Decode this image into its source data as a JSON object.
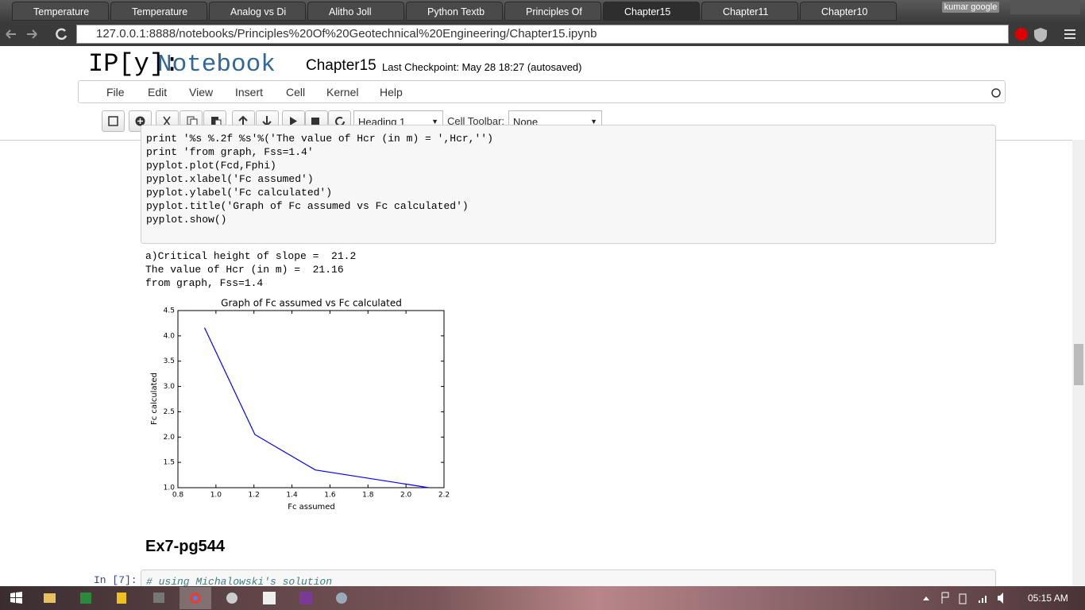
{
  "browser": {
    "tabs": [
      "Temperature",
      "Temperature",
      "Analog vs Di",
      "Alitho Joll",
      "Python Textb",
      "Principles Of",
      "Chapter15",
      "Chapter11",
      "Chapter10"
    ],
    "active_tab": 6,
    "user": "kumar google",
    "url": "127.0.0.1:8888/notebooks/Principles%20Of%20Geotechnical%20Engineering/Chapter15.ipynb"
  },
  "notebook": {
    "logo": "IP[y]:",
    "logo_word": "Notebook",
    "name": "Chapter15",
    "checkpoint": "Last Checkpoint: May 28 18:27 (autosaved)",
    "menu": [
      "File",
      "Edit",
      "View",
      "Insert",
      "Cell",
      "Kernel",
      "Help"
    ],
    "cell_type": "Heading 1",
    "cell_toolbar_label": "Cell Toolbar:",
    "cell_toolbar": "None"
  },
  "code_cell": {
    "lines": [
      "print '%s %.2f %s'%('The value of Hcr (in m) = ',Hcr,'')",
      "print 'from graph, Fss=1.4'",
      "pyplot.plot(Fcd,Fphi)",
      "pyplot.xlabel('Fc assumed')",
      "pyplot.ylabel('Fc calculated')",
      "pyplot.title('Graph of Fc assumed vs Fc calculated')",
      "pyplot.show()"
    ]
  },
  "output": {
    "lines": [
      "a)Critical height of slope =  21.2",
      "The value of Hcr (in m) =  21.16",
      "from graph, Fss=1.4"
    ]
  },
  "chart_data": {
    "type": "line",
    "title": "Graph of Fc assumed vs Fc calculated",
    "x_label": "Fc assumed",
    "y_label": "Fc calculated",
    "x": [
      0.94,
      1.205,
      1.523,
      2.12
    ],
    "series": [
      {
        "color": "#0000ff",
        "values": [
          4.16,
          2.05,
          1.35,
          1.0
        ]
      }
    ],
    "xlim": [
      0.8,
      2.2
    ],
    "ylim": [
      1.0,
      4.5
    ],
    "xticks": [
      0.8,
      {
        "value": 1,
        "label": "1.0"
      },
      1.2,
      1.4,
      1.6,
      1.8,
      {
        "value": 2,
        "label": "2.0"
      },
      2.2
    ],
    "yticks": [
      {
        "value": 1,
        "label": "1.0"
      },
      1.5,
      {
        "value": 2,
        "label": "2.0"
      },
      2.5,
      {
        "value": 3,
        "label": "3.0"
      },
      3.5,
      {
        "value": 4,
        "label": "4.0"
      },
      4.5
    ],
    "grid": false
  },
  "heading": "Ex7-pg544",
  "next_cell": {
    "prompt": "In [7]:",
    "code": "# using Michalowski's solution"
  },
  "taskbar": {
    "time": "05:15 AM"
  }
}
